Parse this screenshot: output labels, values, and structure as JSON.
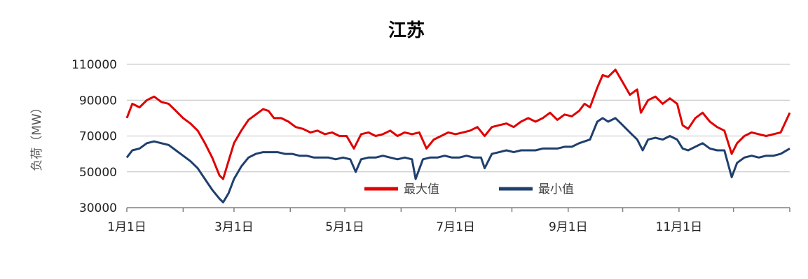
{
  "chart_data": {
    "type": "line",
    "title": "江苏",
    "ylabel": "负荷（MW）",
    "xlabel": "",
    "x_tick_labels": [
      "1月1日",
      "3月1日",
      "5月1日",
      "7月1日",
      "9月1日",
      "11月1日"
    ],
    "x_tick_days": [
      1,
      60,
      121,
      182,
      244,
      305
    ],
    "y_ticks": [
      30000,
      50000,
      70000,
      90000,
      110000
    ],
    "ylim": [
      30000,
      110000
    ],
    "xlim": [
      1,
      366
    ],
    "grid": "horizontal",
    "legend_position": "bottom-center",
    "series": [
      {
        "name": "最大值",
        "color": "#e00000",
        "points": [
          [
            1,
            80000
          ],
          [
            4,
            88000
          ],
          [
            8,
            86000
          ],
          [
            12,
            90000
          ],
          [
            16,
            92000
          ],
          [
            20,
            89000
          ],
          [
            24,
            88000
          ],
          [
            28,
            84000
          ],
          [
            32,
            80000
          ],
          [
            36,
            77000
          ],
          [
            40,
            73000
          ],
          [
            44,
            66000
          ],
          [
            48,
            58000
          ],
          [
            52,
            48000
          ],
          [
            54,
            46000
          ],
          [
            57,
            56000
          ],
          [
            60,
            66000
          ],
          [
            64,
            73000
          ],
          [
            68,
            79000
          ],
          [
            72,
            82000
          ],
          [
            76,
            85000
          ],
          [
            79,
            84000
          ],
          [
            82,
            80000
          ],
          [
            86,
            80000
          ],
          [
            90,
            78000
          ],
          [
            94,
            75000
          ],
          [
            98,
            74000
          ],
          [
            102,
            72000
          ],
          [
            106,
            73000
          ],
          [
            110,
            71000
          ],
          [
            114,
            72000
          ],
          [
            118,
            70000
          ],
          [
            122,
            70000
          ],
          [
            126,
            63000
          ],
          [
            130,
            71000
          ],
          [
            134,
            72000
          ],
          [
            138,
            70000
          ],
          [
            142,
            71000
          ],
          [
            146,
            73000
          ],
          [
            150,
            70000
          ],
          [
            154,
            72000
          ],
          [
            158,
            71000
          ],
          [
            162,
            72000
          ],
          [
            166,
            63000
          ],
          [
            170,
            68000
          ],
          [
            174,
            70000
          ],
          [
            178,
            72000
          ],
          [
            182,
            71000
          ],
          [
            186,
            72000
          ],
          [
            190,
            73000
          ],
          [
            194,
            75000
          ],
          [
            198,
            70000
          ],
          [
            202,
            75000
          ],
          [
            206,
            76000
          ],
          [
            210,
            77000
          ],
          [
            214,
            75000
          ],
          [
            218,
            78000
          ],
          [
            222,
            80000
          ],
          [
            226,
            78000
          ],
          [
            230,
            80000
          ],
          [
            234,
            83000
          ],
          [
            238,
            79000
          ],
          [
            242,
            82000
          ],
          [
            246,
            81000
          ],
          [
            250,
            84000
          ],
          [
            253,
            88000
          ],
          [
            256,
            86000
          ],
          [
            260,
            97000
          ],
          [
            263,
            104000
          ],
          [
            266,
            103000
          ],
          [
            270,
            107000
          ],
          [
            274,
            100000
          ],
          [
            278,
            93000
          ],
          [
            282,
            96000
          ],
          [
            284,
            83000
          ],
          [
            288,
            90000
          ],
          [
            292,
            92000
          ],
          [
            296,
            88000
          ],
          [
            300,
            91000
          ],
          [
            304,
            88000
          ],
          [
            307,
            76000
          ],
          [
            310,
            74000
          ],
          [
            314,
            80000
          ],
          [
            318,
            83000
          ],
          [
            322,
            78000
          ],
          [
            326,
            75000
          ],
          [
            330,
            73000
          ],
          [
            334,
            60000
          ],
          [
            337,
            66000
          ],
          [
            341,
            70000
          ],
          [
            345,
            72000
          ],
          [
            349,
            71000
          ],
          [
            353,
            70000
          ],
          [
            357,
            71000
          ],
          [
            361,
            72000
          ],
          [
            366,
            83000
          ]
        ]
      },
      {
        "name": "最小值",
        "color": "#1f3f6e",
        "points": [
          [
            1,
            58000
          ],
          [
            4,
            62000
          ],
          [
            8,
            63000
          ],
          [
            12,
            66000
          ],
          [
            16,
            67000
          ],
          [
            20,
            66000
          ],
          [
            24,
            65000
          ],
          [
            28,
            62000
          ],
          [
            32,
            59000
          ],
          [
            36,
            56000
          ],
          [
            40,
            52000
          ],
          [
            44,
            46000
          ],
          [
            48,
            40000
          ],
          [
            52,
            35000
          ],
          [
            54,
            33000
          ],
          [
            57,
            38000
          ],
          [
            60,
            46000
          ],
          [
            64,
            53000
          ],
          [
            68,
            58000
          ],
          [
            72,
            60000
          ],
          [
            76,
            61000
          ],
          [
            80,
            61000
          ],
          [
            84,
            61000
          ],
          [
            88,
            60000
          ],
          [
            92,
            60000
          ],
          [
            96,
            59000
          ],
          [
            100,
            59000
          ],
          [
            104,
            58000
          ],
          [
            108,
            58000
          ],
          [
            112,
            58000
          ],
          [
            116,
            57000
          ],
          [
            120,
            58000
          ],
          [
            124,
            57000
          ],
          [
            127,
            50000
          ],
          [
            130,
            57000
          ],
          [
            134,
            58000
          ],
          [
            138,
            58000
          ],
          [
            142,
            59000
          ],
          [
            146,
            58000
          ],
          [
            150,
            57000
          ],
          [
            154,
            58000
          ],
          [
            158,
            57000
          ],
          [
            160,
            46000
          ],
          [
            164,
            57000
          ],
          [
            168,
            58000
          ],
          [
            172,
            58000
          ],
          [
            176,
            59000
          ],
          [
            180,
            58000
          ],
          [
            184,
            58000
          ],
          [
            188,
            59000
          ],
          [
            192,
            58000
          ],
          [
            196,
            58000
          ],
          [
            198,
            52000
          ],
          [
            202,
            60000
          ],
          [
            206,
            61000
          ],
          [
            210,
            62000
          ],
          [
            214,
            61000
          ],
          [
            218,
            62000
          ],
          [
            222,
            62000
          ],
          [
            226,
            62000
          ],
          [
            230,
            63000
          ],
          [
            234,
            63000
          ],
          [
            238,
            63000
          ],
          [
            242,
            64000
          ],
          [
            246,
            64000
          ],
          [
            250,
            66000
          ],
          [
            253,
            67000
          ],
          [
            256,
            68000
          ],
          [
            260,
            78000
          ],
          [
            263,
            80000
          ],
          [
            266,
            78000
          ],
          [
            270,
            80000
          ],
          [
            274,
            76000
          ],
          [
            278,
            72000
          ],
          [
            282,
            68000
          ],
          [
            285,
            62000
          ],
          [
            288,
            68000
          ],
          [
            292,
            69000
          ],
          [
            296,
            68000
          ],
          [
            300,
            70000
          ],
          [
            304,
            68000
          ],
          [
            307,
            63000
          ],
          [
            310,
            62000
          ],
          [
            314,
            64000
          ],
          [
            318,
            66000
          ],
          [
            322,
            63000
          ],
          [
            326,
            62000
          ],
          [
            330,
            62000
          ],
          [
            334,
            47000
          ],
          [
            337,
            55000
          ],
          [
            341,
            58000
          ],
          [
            345,
            59000
          ],
          [
            349,
            58000
          ],
          [
            353,
            59000
          ],
          [
            357,
            59000
          ],
          [
            361,
            60000
          ],
          [
            366,
            63000
          ]
        ]
      }
    ]
  }
}
